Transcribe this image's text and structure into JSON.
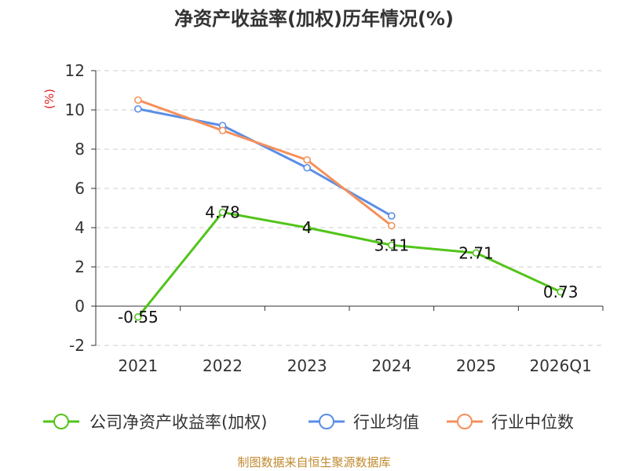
{
  "chart_data": {
    "type": "line",
    "title": "净资产收益率(加权)历年情况(%)",
    "ylabel": "(%)",
    "xlabel": "",
    "categories": [
      "2021",
      "2022",
      "2023",
      "2024",
      "2025",
      "2026Q1"
    ],
    "ylim": [
      -2,
      12
    ],
    "yticks": [
      -2,
      0,
      2,
      4,
      6,
      8,
      10,
      12
    ],
    "grid": true,
    "legend_position": "bottom",
    "series": [
      {
        "name": "公司净资产收益率(加权)",
        "color": "#52c41a",
        "values": [
          -0.55,
          4.78,
          4,
          3.11,
          2.71,
          0.73
        ],
        "labels": [
          "-0.55",
          "4.78",
          "4",
          "3.11",
          "2.71",
          "0.73"
        ]
      },
      {
        "name": "行业均值",
        "color": "#5b8ee6",
        "values": [
          10.05,
          9.2,
          7.05,
          4.6,
          null,
          null
        ]
      },
      {
        "name": "行业中位数",
        "color": "#f5905b",
        "values": [
          10.5,
          8.95,
          7.45,
          4.1,
          null,
          null
        ]
      }
    ],
    "source": "制图数据来自恒生聚源数据库"
  }
}
